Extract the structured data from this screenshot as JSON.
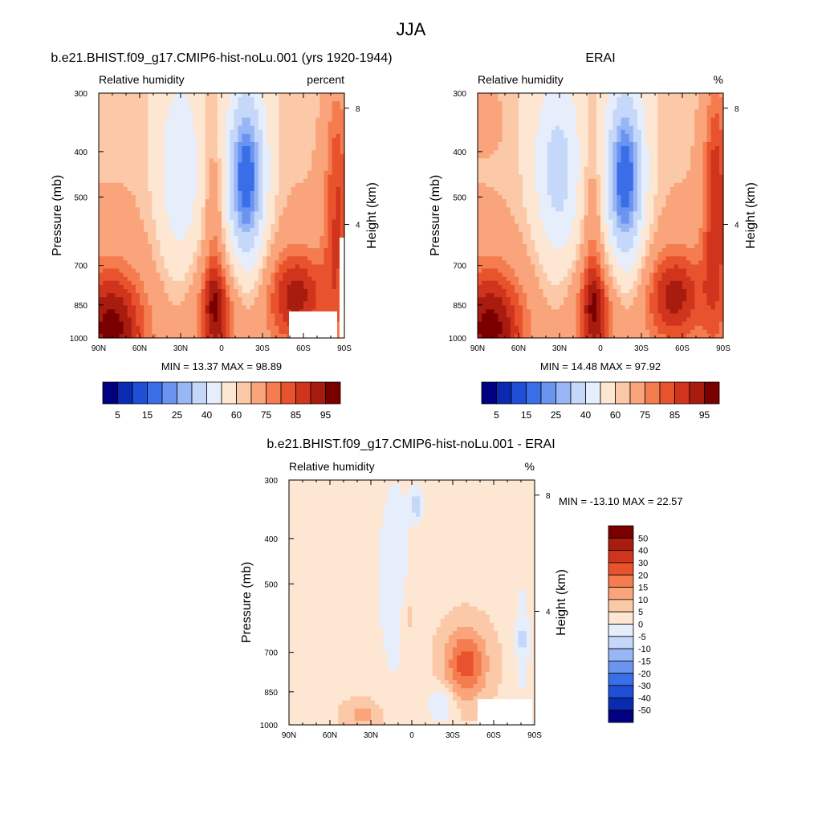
{
  "figure": {
    "title": "JJA"
  },
  "chart_data": [
    {
      "type": "contour",
      "id": "model",
      "title": "b.e21.BHIST.f09_g17.CMIP6-hist-noLu.001 (yrs 1920-1944)",
      "left_label": "Relative humidity",
      "right_label": "percent",
      "ylabel": "Pressure (mb)",
      "ylabel_right": "Height (km)",
      "x_ticks": [
        "90N",
        "60N",
        "30N",
        "0",
        "30S",
        "60S",
        "90S"
      ],
      "y_ticks": [
        300,
        400,
        500,
        700,
        850,
        1000
      ],
      "height_ticks": [
        8,
        4
      ],
      "ylim": [
        1000,
        300
      ],
      "xlim": [
        90,
        -90
      ],
      "stats": "MIN =  13.37  MAX =  98.89",
      "levels": [
        5,
        10,
        15,
        20,
        25,
        30,
        40,
        50,
        60,
        65,
        75,
        80,
        85,
        90,
        95
      ],
      "colorbar_labels": [
        "5",
        "15",
        "25",
        "40",
        "60",
        "75",
        "85",
        "95"
      ]
    },
    {
      "type": "contour",
      "id": "obs",
      "title": "ERAI",
      "left_label": "Relative humidity",
      "right_label": "%",
      "ylabel": "Pressure (mb)",
      "ylabel_right": "Height (km)",
      "x_ticks": [
        "90N",
        "60N",
        "30N",
        "0",
        "30S",
        "60S",
        "90S"
      ],
      "y_ticks": [
        300,
        400,
        500,
        700,
        850,
        1000
      ],
      "height_ticks": [
        8,
        4
      ],
      "ylim": [
        1000,
        300
      ],
      "xlim": [
        90,
        -90
      ],
      "stats": "MIN =  14.48  MAX =  97.92",
      "levels": [
        5,
        10,
        15,
        20,
        25,
        30,
        40,
        50,
        60,
        65,
        75,
        80,
        85,
        90,
        95
      ],
      "colorbar_labels": [
        "5",
        "15",
        "25",
        "40",
        "60",
        "75",
        "85",
        "95"
      ]
    },
    {
      "type": "contour",
      "id": "diff",
      "title": "b.e21.BHIST.f09_g17.CMIP6-hist-noLu.001 - ERAI",
      "left_label": "Relative humidity",
      "right_label": "%",
      "ylabel": "Pressure (mb)",
      "ylabel_right": "Height (km)",
      "x_ticks": [
        "90N",
        "60N",
        "30N",
        "0",
        "30S",
        "60S",
        "90S"
      ],
      "y_ticks": [
        300,
        400,
        500,
        700,
        850,
        1000
      ],
      "height_ticks": [
        8,
        4
      ],
      "ylim": [
        1000,
        300
      ],
      "xlim": [
        90,
        -90
      ],
      "stats": "MIN = -13.10  MAX =  22.57",
      "levels": [
        -50,
        -40,
        -30,
        -20,
        -15,
        -10,
        -5,
        0,
        5,
        10,
        15,
        20,
        30,
        40,
        50
      ],
      "colorbar_labels": [
        "50",
        "40",
        "30",
        "20",
        "15",
        "10",
        "5",
        "0",
        "-5",
        "-10",
        "-15",
        "-20",
        "-30",
        "-40",
        "-50"
      ]
    }
  ],
  "colors": {
    "palette": [
      "#000080",
      "#0a2bb0",
      "#1e4fd6",
      "#3a6ee8",
      "#6a94f0",
      "#98b6f5",
      "#c6d8f9",
      "#e6eefc",
      "#fde6d2",
      "#fcc9a8",
      "#f9a47a",
      "#f47c4f",
      "#e8522c",
      "#d0341c",
      "#a81c10",
      "#7a0000"
    ]
  }
}
